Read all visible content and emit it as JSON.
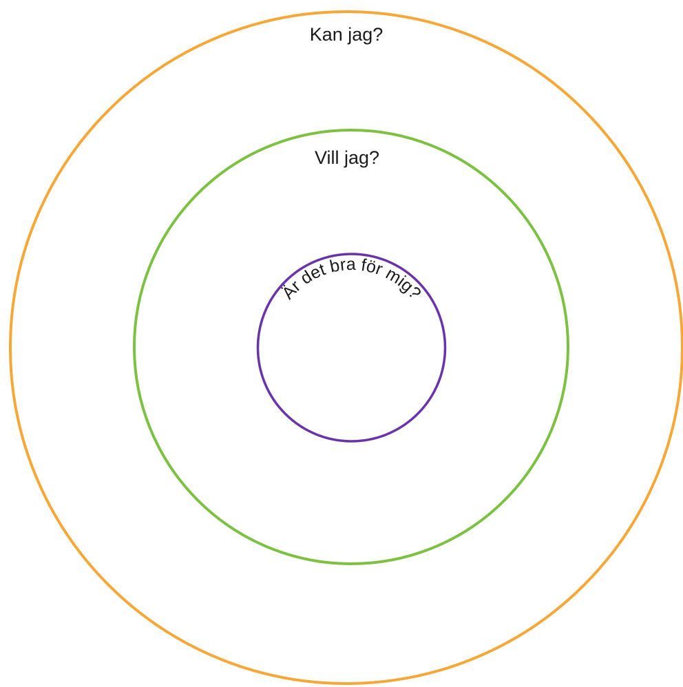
{
  "rings": [
    {
      "label": "Kan jag?",
      "color": "#F5A838"
    },
    {
      "label": "Vill jag?",
      "color": "#7CC142"
    },
    {
      "label": "Är det bra för mig?",
      "color": "#6A34A8"
    }
  ]
}
